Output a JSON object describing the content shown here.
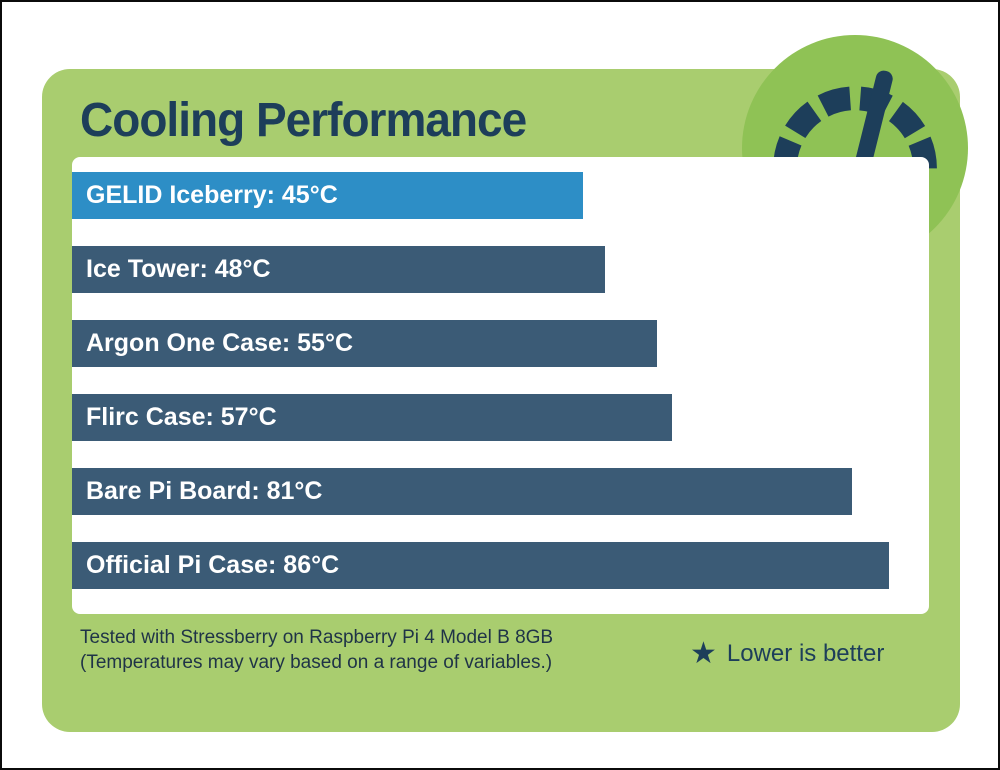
{
  "title": "Cooling Performance",
  "chart_data": {
    "type": "bar",
    "orientation": "horizontal",
    "title": "Cooling Performance",
    "categories": [
      "GELID Iceberry",
      "Ice Tower",
      "Argon One Case",
      "Flirc Case",
      "Bare Pi Board",
      "Official Pi Case"
    ],
    "values": [
      45,
      48,
      55,
      57,
      81,
      86
    ],
    "unit": "°C",
    "highlight_index": 0,
    "highlight_category": "GELID Iceberry",
    "xlim": [
      0,
      86
    ],
    "grid": false,
    "legend_position": "bottom-right",
    "colors": {
      "bar": "#3b5b76",
      "highlight_bar": "#2d8ec6",
      "label_text": "#ffffff"
    }
  },
  "footer": {
    "note": "Tested with Stressberry on Raspberry Pi 4 Model B 8GB (Temperatures may vary based on a range of variables.)",
    "star_icon": "★",
    "legend": "Lower is better"
  },
  "theme": {
    "card_green": "#a9cd6f",
    "circle_green": "#8fc255",
    "navy": "#1d3e5a",
    "panel_white": "#ffffff",
    "note_text": "#1f3347"
  }
}
